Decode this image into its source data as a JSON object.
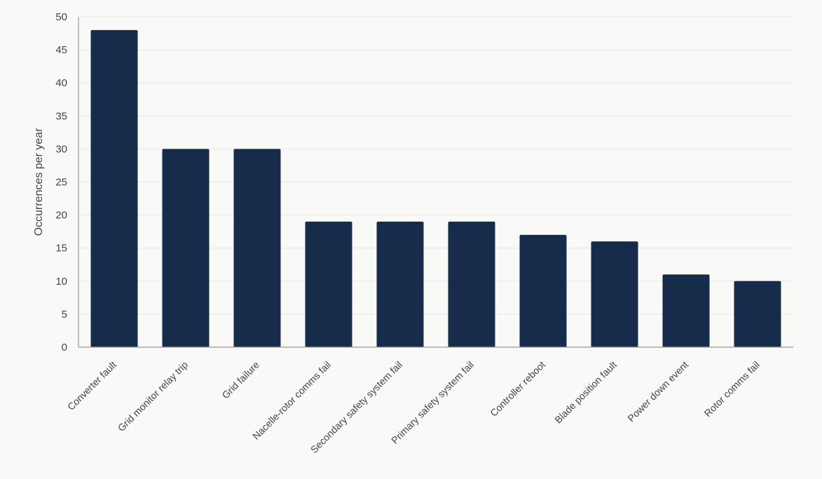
{
  "chart_data": {
    "type": "bar",
    "title": "",
    "xlabel": "",
    "ylabel": "Occurrences per year",
    "ylim": [
      0,
      50
    ],
    "yticks": [
      0,
      5,
      10,
      15,
      20,
      25,
      30,
      35,
      40,
      45,
      50
    ],
    "grid": true,
    "legend": "none",
    "categories": [
      "Converter fault",
      "Grid monitor relay trip",
      "Grid failure",
      "Nacelle-rotor comms fail",
      "Secondary safety system fail",
      "Primary safety system fail",
      "Controller reboot",
      "Blade position fault",
      "Power down event",
      "Rotor comms fail"
    ],
    "values": [
      48,
      30,
      30,
      19,
      19,
      19,
      17,
      16,
      11,
      10
    ],
    "colors": {
      "bar": "#172b4a",
      "axis": "#999999",
      "grid": "#e8e8e6",
      "text": "#444444",
      "background": "#f9f9f7"
    }
  }
}
